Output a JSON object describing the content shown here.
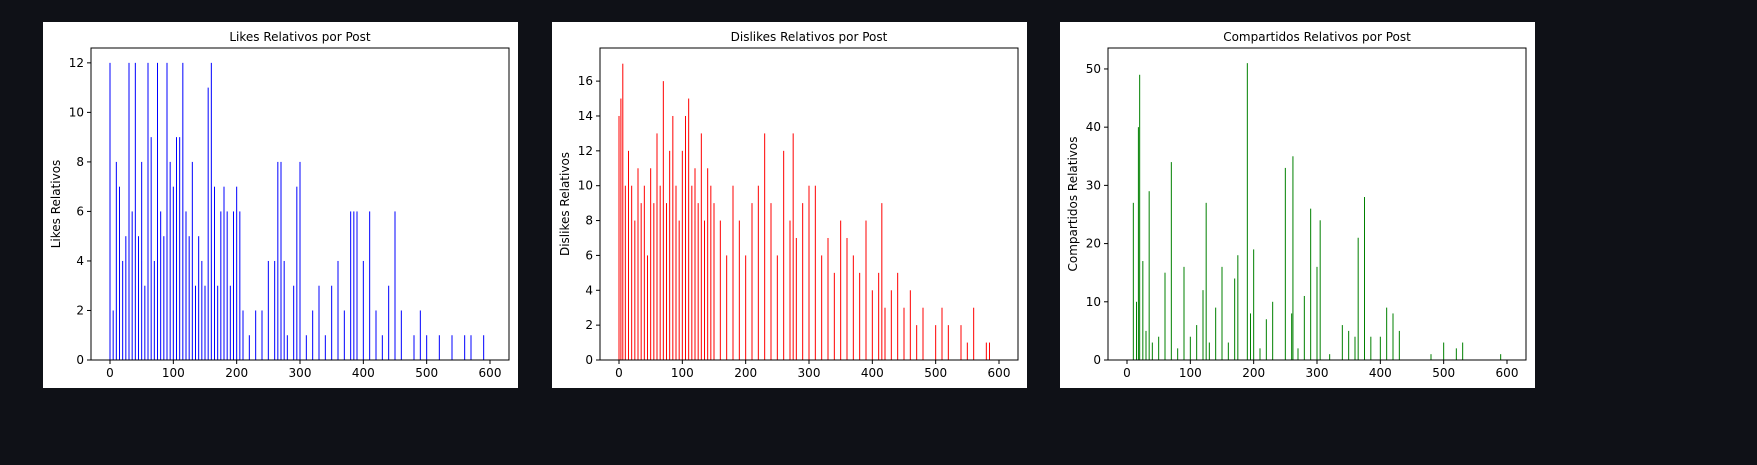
{
  "chart_data": [
    {
      "type": "bar",
      "title": "Likes Relativos por Post",
      "ylabel": "Likes Relativos",
      "color": "#0000ff",
      "x": [
        0,
        5,
        10,
        15,
        20,
        25,
        30,
        35,
        40,
        45,
        50,
        55,
        60,
        65,
        70,
        75,
        80,
        85,
        90,
        95,
        100,
        105,
        110,
        115,
        120,
        125,
        130,
        135,
        140,
        145,
        150,
        155,
        160,
        165,
        170,
        175,
        180,
        185,
        190,
        195,
        200,
        205,
        210,
        220,
        230,
        240,
        250,
        260,
        265,
        270,
        275,
        280,
        290,
        295,
        300,
        310,
        320,
        330,
        340,
        350,
        360,
        370,
        380,
        385,
        390,
        400,
        410,
        420,
        430,
        440,
        450,
        460,
        480,
        490,
        500,
        520,
        540,
        560,
        570,
        590
      ],
      "values": [
        12,
        2,
        8,
        7,
        4,
        5,
        12,
        6,
        12,
        5,
        8,
        3,
        12,
        9,
        4,
        12,
        6,
        5,
        12,
        8,
        7,
        9,
        9,
        12,
        6,
        5,
        8,
        3,
        5,
        4,
        3,
        11,
        12,
        7,
        3,
        6,
        7,
        6,
        3,
        6,
        7,
        6,
        2,
        1,
        2,
        2,
        4,
        4,
        8,
        8,
        4,
        1,
        3,
        7,
        8,
        1,
        2,
        3,
        1,
        3,
        4,
        2,
        6,
        6,
        6,
        4,
        6,
        2,
        1,
        3,
        6,
        2,
        1,
        2,
        1,
        1,
        1,
        1,
        1,
        1
      ],
      "xlim": [
        -30,
        630
      ],
      "xticks": [
        0,
        100,
        200,
        300,
        400,
        500,
        600
      ],
      "ylim": [
        0,
        12.6
      ],
      "yticks": [
        0,
        2,
        4,
        6,
        8,
        10,
        12
      ]
    },
    {
      "type": "bar",
      "title": "Dislikes Relativos por Post",
      "ylabel": "Dislikes Relativos",
      "color": "#ff0000",
      "x": [
        0,
        3,
        6,
        10,
        15,
        20,
        25,
        30,
        35,
        40,
        45,
        50,
        55,
        60,
        65,
        70,
        75,
        80,
        85,
        90,
        95,
        100,
        105,
        110,
        115,
        120,
        125,
        130,
        135,
        140,
        145,
        150,
        160,
        170,
        180,
        190,
        200,
        210,
        220,
        230,
        240,
        250,
        260,
        270,
        275,
        280,
        290,
        300,
        310,
        320,
        330,
        340,
        350,
        360,
        370,
        380,
        390,
        400,
        410,
        415,
        420,
        430,
        440,
        450,
        460,
        470,
        480,
        500,
        510,
        520,
        540,
        550,
        560,
        580,
        585
      ],
      "values": [
        14,
        15,
        17,
        10,
        12,
        10,
        8,
        11,
        9,
        10,
        6,
        11,
        9,
        13,
        10,
        16,
        9,
        12,
        14,
        10,
        8,
        12,
        14,
        15,
        10,
        11,
        9,
        13,
        8,
        11,
        10,
        9,
        8,
        6,
        10,
        8,
        6,
        9,
        10,
        13,
        9,
        6,
        12,
        8,
        13,
        7,
        9,
        10,
        10,
        6,
        7,
        5,
        8,
        7,
        6,
        5,
        8,
        4,
        5,
        9,
        3,
        4,
        5,
        3,
        4,
        2,
        3,
        2,
        3,
        2,
        2,
        1,
        3,
        1,
        1
      ],
      "xlim": [
        -30,
        630
      ],
      "xticks": [
        0,
        100,
        200,
        300,
        400,
        500,
        600
      ],
      "ylim": [
        0,
        17.9
      ],
      "yticks": [
        0,
        2,
        4,
        6,
        8,
        10,
        12,
        14,
        16
      ]
    },
    {
      "type": "bar",
      "title": "Compartidos Relativos por Post",
      "ylabel": "Compartidos Relativos",
      "color": "#008000",
      "x": [
        10,
        15,
        18,
        20,
        25,
        30,
        35,
        40,
        50,
        60,
        70,
        80,
        90,
        100,
        110,
        120,
        125,
        130,
        140,
        150,
        160,
        170,
        175,
        190,
        195,
        200,
        210,
        220,
        230,
        250,
        260,
        262,
        270,
        280,
        290,
        300,
        305,
        320,
        340,
        350,
        360,
        365,
        375,
        385,
        400,
        410,
        420,
        430,
        480,
        500,
        520,
        530,
        590
      ],
      "values": [
        27,
        10,
        40,
        49,
        17,
        5,
        29,
        3,
        4,
        15,
        34,
        2,
        16,
        4,
        6,
        12,
        27,
        3,
        9,
        16,
        3,
        14,
        18,
        51,
        8,
        19,
        2,
        7,
        10,
        33,
        8,
        35,
        2,
        11,
        26,
        16,
        24,
        1,
        6,
        5,
        4,
        21,
        28,
        4,
        4,
        9,
        8,
        5,
        1,
        3,
        2,
        3,
        1
      ],
      "xlim": [
        -30,
        630
      ],
      "xticks": [
        0,
        100,
        200,
        300,
        400,
        500,
        600
      ],
      "ylim": [
        0,
        53.6
      ],
      "yticks": [
        0,
        10,
        20,
        30,
        40,
        50
      ]
    }
  ]
}
